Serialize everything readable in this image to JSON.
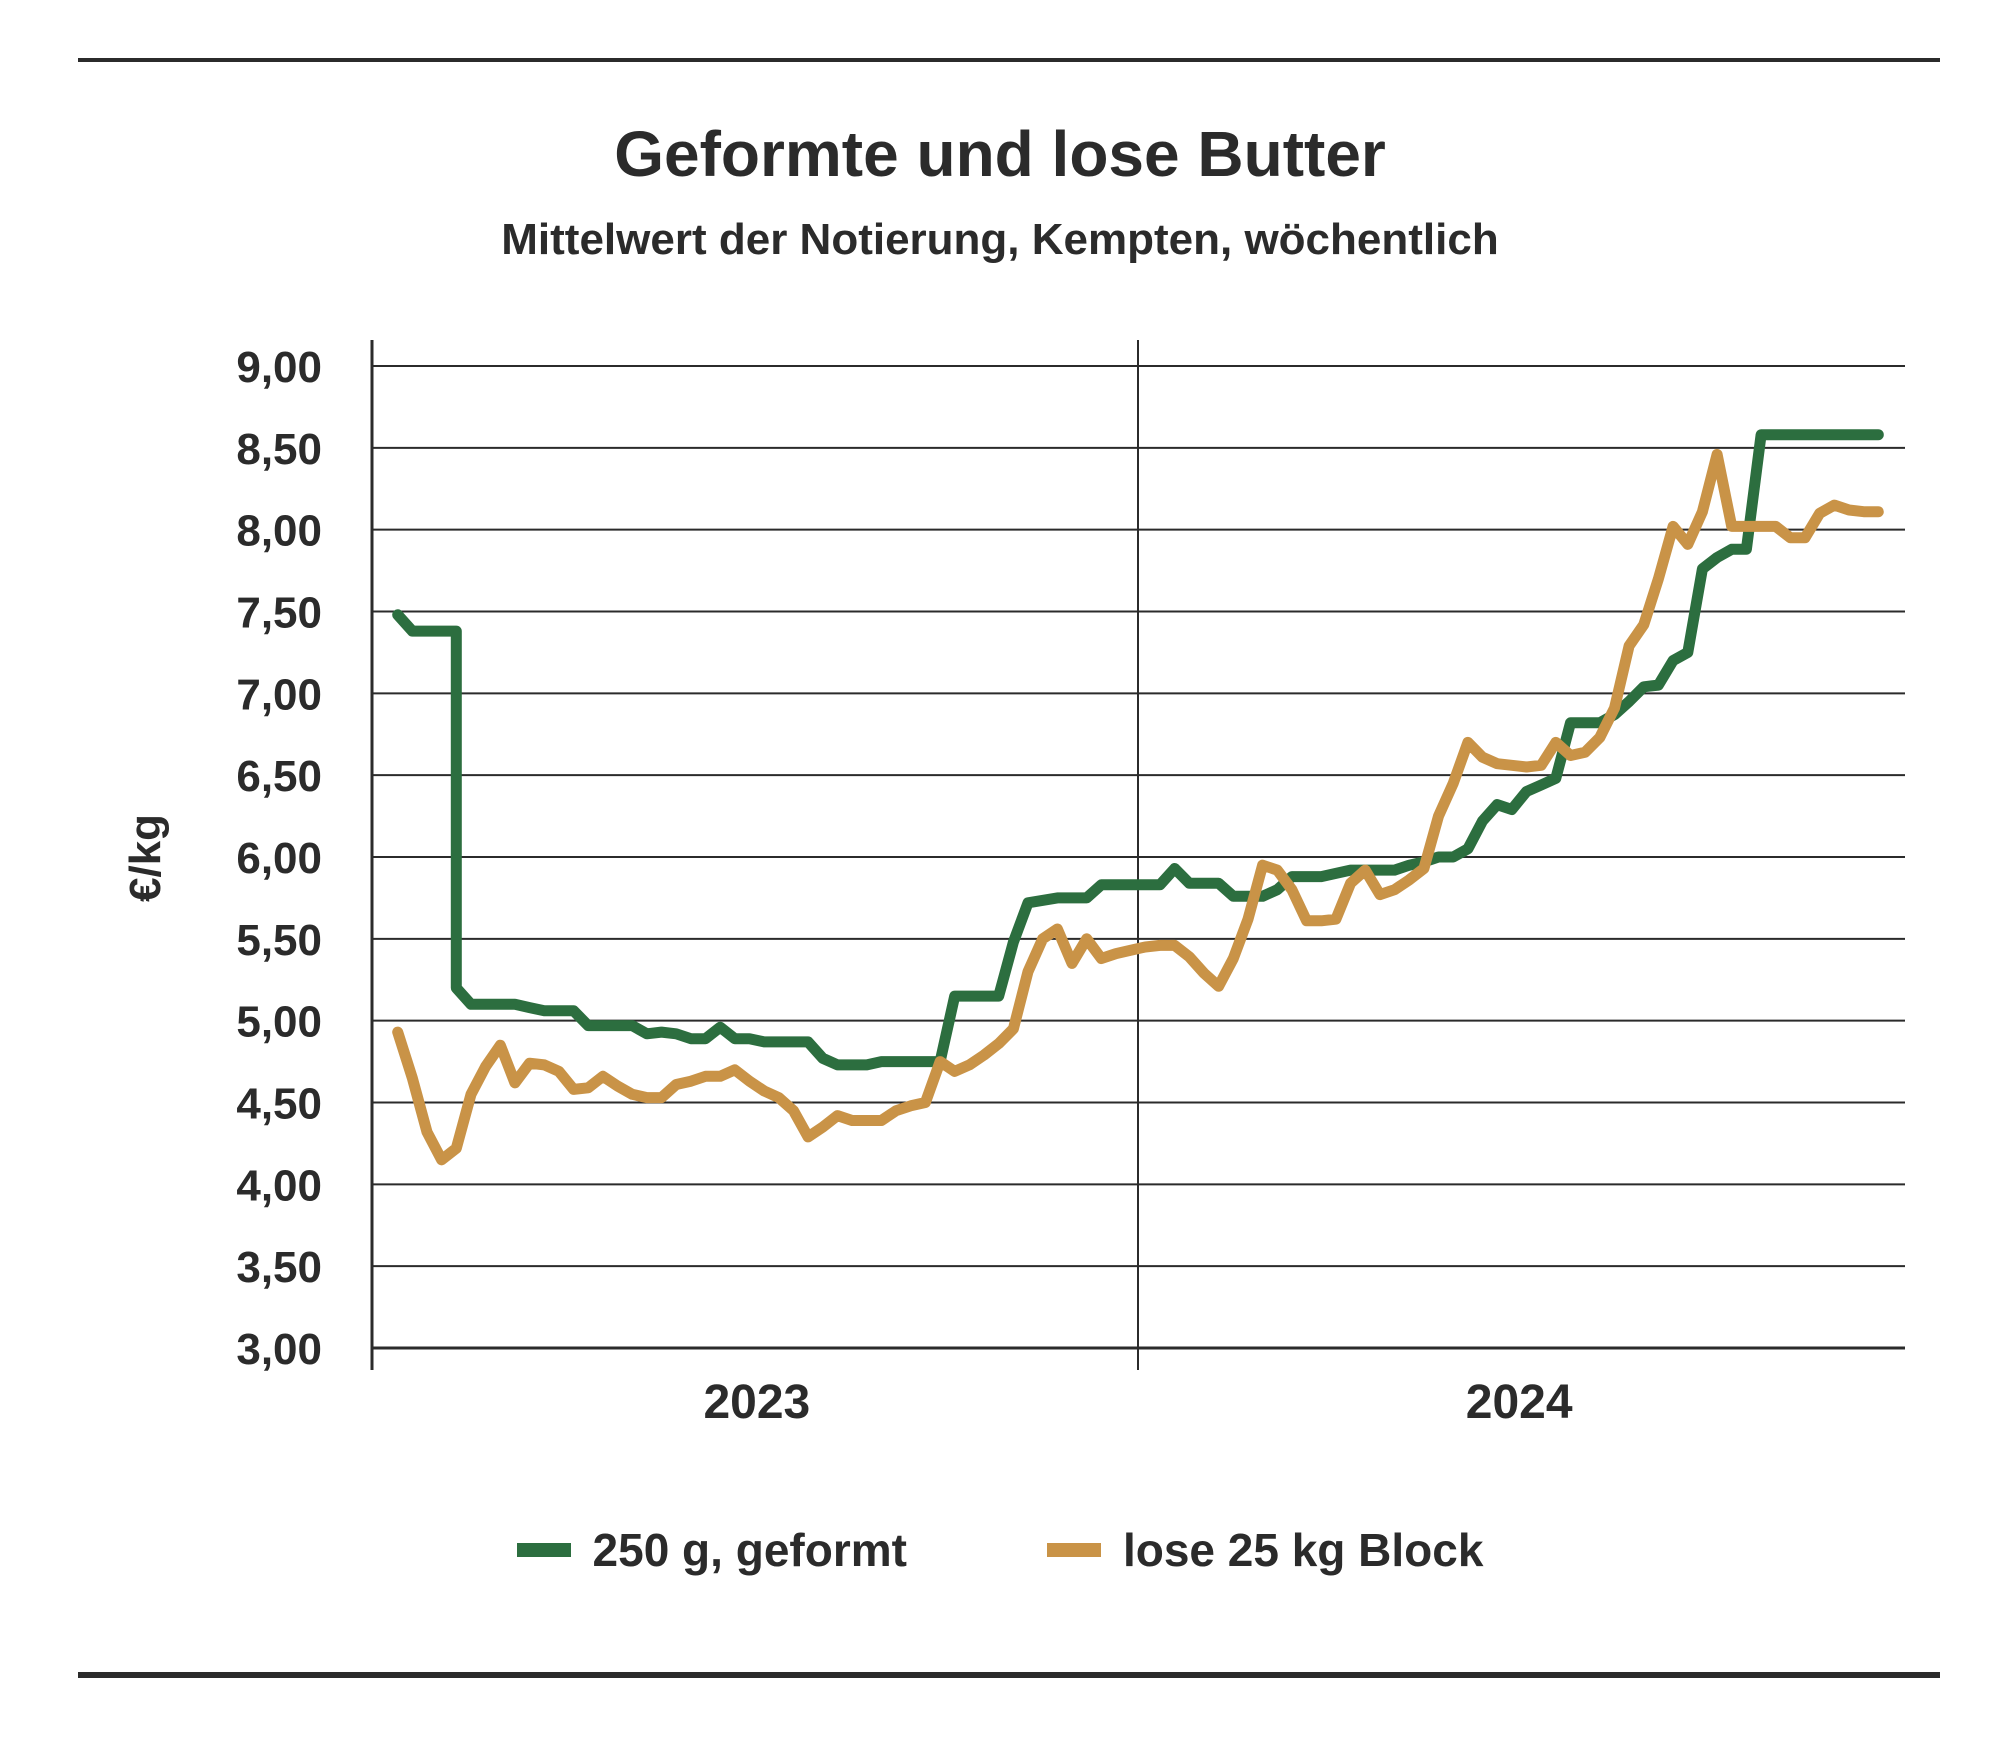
{
  "chart_data": {
    "type": "line",
    "title": "Geformte und lose Butter",
    "subtitle": "Mittelwert der Notierung, Kempten, wöchentlich",
    "ylabel": "€/kg",
    "xlabel": "",
    "ylim": [
      3.0,
      9.0
    ],
    "yticks": [
      "3,00",
      "3,50",
      "4,00",
      "4,50",
      "5,00",
      "5,50",
      "6,00",
      "6,50",
      "7,00",
      "7,50",
      "8,00",
      "8,50",
      "9,00"
    ],
    "ytick_values": [
      3.0,
      3.5,
      4.0,
      4.5,
      5.0,
      5.5,
      6.0,
      6.5,
      7.0,
      7.5,
      8.0,
      8.5,
      9.0
    ],
    "x_unit": "Woche",
    "xlim": [
      1,
      104
    ],
    "x_groups": [
      {
        "label": "2023",
        "from": 1,
        "to": 52
      },
      {
        "label": "2024",
        "from": 53,
        "to": 104
      }
    ],
    "grid": true,
    "legend_position": "bottom",
    "series": [
      {
        "name": "250 g, geformt",
        "color": "#2c6e3f",
        "x": [
          2,
          3,
          5,
          5,
          6,
          6,
          7,
          9,
          10,
          11,
          12,
          13,
          14,
          15,
          16,
          17,
          18,
          19,
          20,
          21,
          22,
          23,
          24,
          25,
          26,
          27,
          28,
          29,
          30,
          31,
          32,
          33,
          34,
          35,
          36,
          37,
          38,
          39,
          40,
          42,
          43,
          44,
          45,
          47,
          48,
          49,
          50,
          51,
          52,
          53,
          54,
          55,
          56,
          57,
          58,
          59,
          60,
          61,
          62,
          63,
          64,
          65,
          66,
          67,
          68,
          69,
          70,
          71,
          72,
          73,
          74,
          75,
          76,
          77,
          78,
          79,
          80,
          81,
          82,
          83,
          84,
          85,
          86,
          87,
          88,
          89,
          90,
          91,
          92,
          93,
          94,
          95,
          96,
          97,
          98,
          99,
          100,
          101,
          102,
          103
        ],
        "values": [
          7.48,
          7.38,
          7.38,
          7.38,
          7.38,
          5.2,
          5.1,
          5.1,
          5.1,
          5.08,
          5.06,
          5.06,
          5.06,
          4.97,
          4.97,
          4.97,
          4.97,
          4.92,
          4.93,
          4.92,
          4.89,
          4.89,
          4.96,
          4.89,
          4.89,
          4.87,
          4.87,
          4.87,
          4.87,
          4.77,
          4.73,
          4.73,
          4.73,
          4.75,
          4.75,
          4.75,
          4.75,
          4.75,
          5.15,
          5.15,
          5.15,
          5.48,
          5.72,
          5.75,
          5.75,
          5.75,
          5.83,
          5.83,
          5.83,
          5.83,
          5.83,
          5.93,
          5.84,
          5.84,
          5.84,
          5.76,
          5.76,
          5.76,
          5.8,
          5.88,
          5.88,
          5.88,
          5.9,
          5.92,
          5.92,
          5.92,
          5.92,
          5.95,
          5.97,
          6.0,
          6.0,
          6.05,
          6.22,
          6.32,
          6.29,
          6.4,
          6.44,
          6.48,
          6.82,
          6.82,
          6.82,
          6.87,
          6.95,
          7.04,
          7.05,
          7.2,
          7.25,
          7.76,
          7.83,
          7.88,
          7.88,
          8.58,
          8.58,
          8.58,
          8.58,
          8.58,
          8.58,
          8.58,
          8.58,
          8.58
        ]
      },
      {
        "name": "lose 25 kg Block",
        "color": "#c99347",
        "x": [
          2,
          3,
          4,
          5,
          6,
          7,
          8,
          9,
          10,
          11,
          12,
          13,
          14,
          15,
          16,
          17,
          18,
          19,
          20,
          21,
          22,
          23,
          24,
          25,
          26,
          27,
          28,
          29,
          30,
          31,
          32,
          33,
          34,
          35,
          36,
          37,
          38,
          39,
          40,
          41,
          42,
          43,
          44,
          45,
          46,
          47,
          48,
          49,
          50,
          51,
          52,
          53,
          54,
          55,
          56,
          57,
          58,
          59,
          60,
          61,
          62,
          63,
          64,
          65,
          66,
          67,
          68,
          69,
          70,
          71,
          72,
          73,
          74,
          75,
          76,
          77,
          78,
          79,
          80,
          81,
          82,
          83,
          84,
          85,
          86,
          87,
          88,
          89,
          90,
          91,
          92,
          93,
          94,
          95,
          96,
          97,
          98,
          99,
          100,
          101,
          102,
          103
        ],
        "values": [
          4.93,
          4.65,
          4.32,
          4.15,
          4.22,
          4.55,
          4.72,
          4.85,
          4.62,
          4.74,
          4.73,
          4.69,
          4.58,
          4.59,
          4.66,
          4.6,
          4.55,
          4.53,
          4.53,
          4.61,
          4.63,
          4.66,
          4.66,
          4.7,
          4.63,
          4.57,
          4.53,
          4.45,
          4.29,
          4.35,
          4.42,
          4.39,
          4.39,
          4.39,
          4.45,
          4.48,
          4.5,
          4.75,
          4.69,
          4.73,
          4.79,
          4.86,
          4.95,
          5.3,
          5.5,
          5.56,
          5.35,
          5.5,
          5.38,
          5.41,
          5.43,
          5.45,
          5.46,
          5.46,
          5.39,
          5.29,
          5.21,
          5.38,
          5.62,
          5.95,
          5.92,
          5.8,
          5.61,
          5.61,
          5.62,
          5.84,
          5.92,
          5.77,
          5.8,
          5.86,
          5.93,
          6.25,
          6.45,
          6.7,
          6.61,
          6.57,
          6.56,
          6.55,
          6.56,
          6.7,
          6.62,
          6.64,
          6.73,
          6.91,
          7.29,
          7.42,
          7.7,
          8.02,
          7.91,
          8.11,
          8.46,
          8.02,
          8.02,
          8.02,
          8.02,
          7.95,
          7.95,
          8.1,
          8.15,
          8.12,
          8.11,
          8.11
        ]
      }
    ]
  }
}
